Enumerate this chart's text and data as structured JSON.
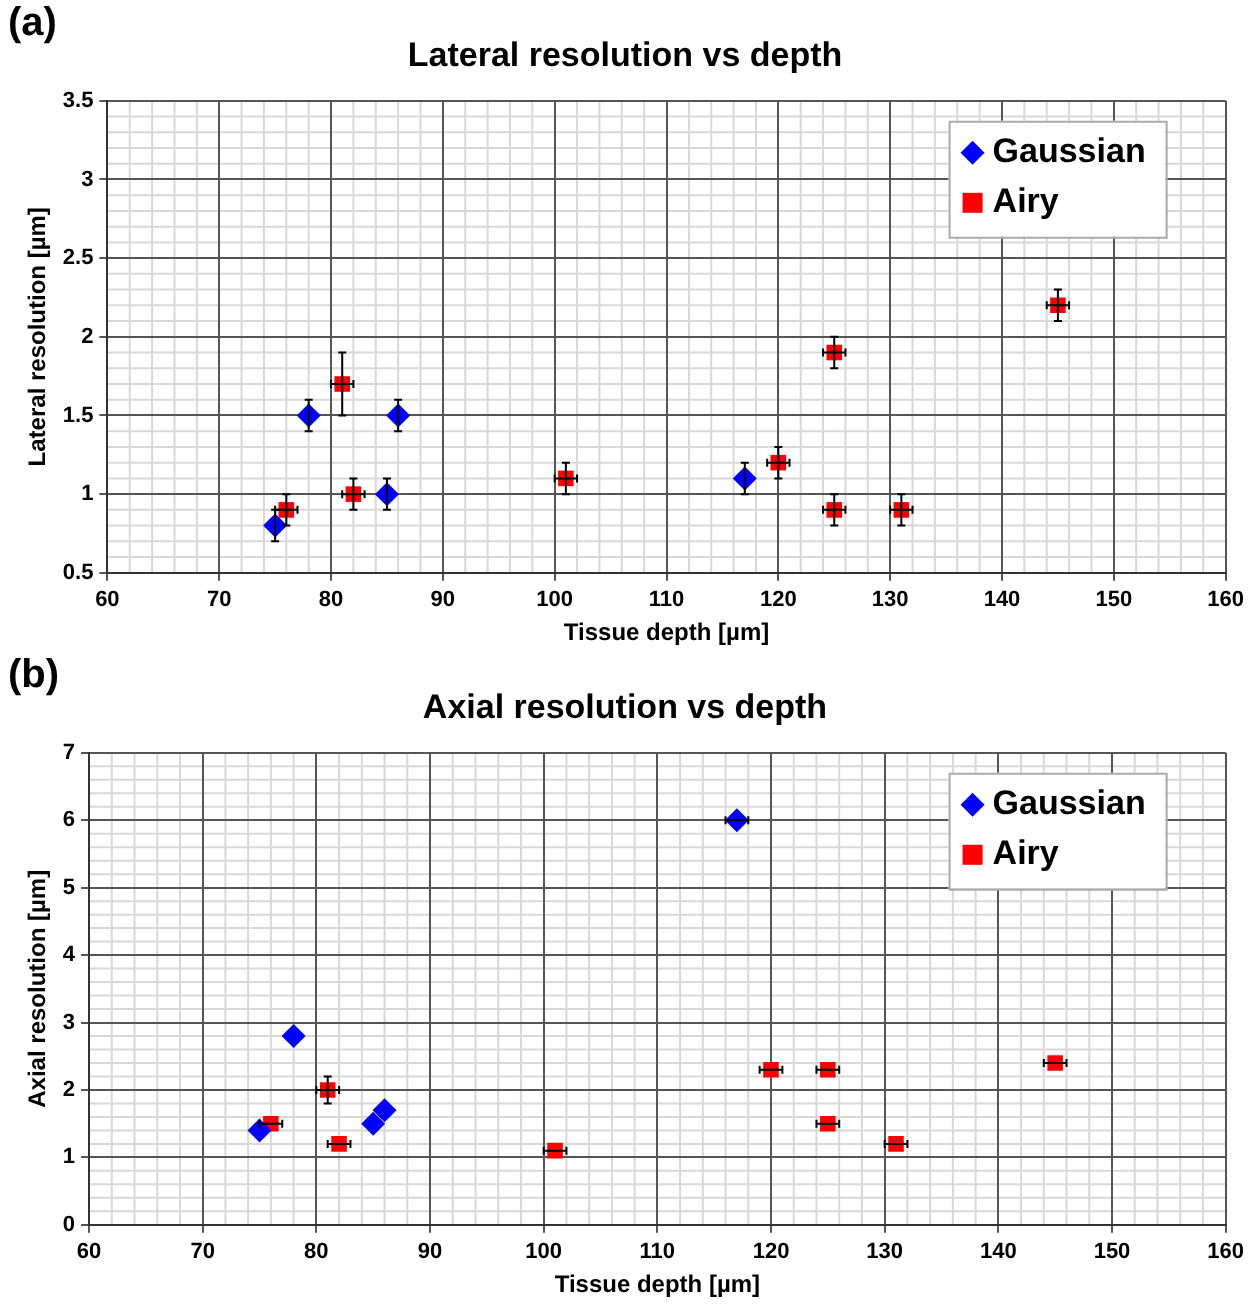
{
  "chart_data": [
    {
      "type": "scatter",
      "title": "Lateral resolution vs depth",
      "xlabel": "Tissue depth [µm]",
      "ylabel": "Lateral resolution [µm]",
      "annotations": [
        "(a)"
      ],
      "xlim": [
        60,
        160
      ],
      "xticks": [
        60,
        70,
        80,
        90,
        100,
        110,
        120,
        130,
        140,
        150,
        160
      ],
      "ylim": [
        0.5,
        3.5
      ],
      "yticks": [
        0.5,
        1,
        1.5,
        2,
        2.5,
        3,
        3.5
      ],
      "grid": true,
      "legend": "top right",
      "series": [
        {
          "name": "Gaussian",
          "color": "#0000ff",
          "marker": "diamond",
          "x": [
            75,
            78,
            85,
            86,
            117
          ],
          "values": [
            0.8,
            1.5,
            1.0,
            1.5,
            1.1
          ],
          "errors": [
            0.1,
            0.1,
            0.1,
            0.1,
            0.1
          ]
        },
        {
          "name": "Airy",
          "color": "#ff0000",
          "marker": "square",
          "x": [
            76,
            81,
            82,
            101,
            120,
            125,
            125,
            131,
            145
          ],
          "values": [
            0.9,
            1.7,
            1.0,
            1.1,
            1.2,
            1.9,
            0.9,
            0.9,
            2.2
          ],
          "errors": [
            0.1,
            0.2,
            0.1,
            0.1,
            0.1,
            0.1,
            0.1,
            0.1,
            0.1
          ],
          "xerrors": [
            1,
            1,
            1,
            1,
            1,
            1,
            1,
            1,
            1
          ]
        }
      ]
    },
    {
      "type": "scatter",
      "title": "Axial resolution vs depth",
      "xlabel": "Tissue depth [µm]",
      "ylabel": "Axial resolution [µm]",
      "annotations": [
        "(b)"
      ],
      "xlim": [
        60,
        160
      ],
      "xticks": [
        60,
        70,
        80,
        90,
        100,
        110,
        120,
        130,
        140,
        150,
        160
      ],
      "ylim": [
        0,
        7
      ],
      "yticks": [
        0,
        1,
        2,
        3,
        4,
        5,
        6,
        7
      ],
      "grid": true,
      "legend": "top right",
      "series": [
        {
          "name": "Gaussian",
          "color": "#0000ff",
          "marker": "diamond",
          "x": [
            75,
            78,
            85,
            86,
            117
          ],
          "values": [
            1.4,
            2.8,
            1.5,
            1.7,
            6.0
          ],
          "xerrors": [
            null,
            null,
            null,
            null,
            1
          ]
        },
        {
          "name": "Airy",
          "color": "#ff0000",
          "marker": "square",
          "x": [
            76,
            81,
            82,
            101,
            120,
            125,
            125,
            131,
            145
          ],
          "values": [
            1.5,
            2.0,
            1.2,
            1.1,
            2.3,
            2.3,
            1.5,
            1.2,
            2.4
          ],
          "errors": [
            null,
            0.2,
            null,
            null,
            null,
            null,
            null,
            null,
            null
          ],
          "xerrors": [
            1,
            1,
            1,
            1,
            1,
            1,
            1,
            1,
            1
          ]
        }
      ]
    }
  ]
}
